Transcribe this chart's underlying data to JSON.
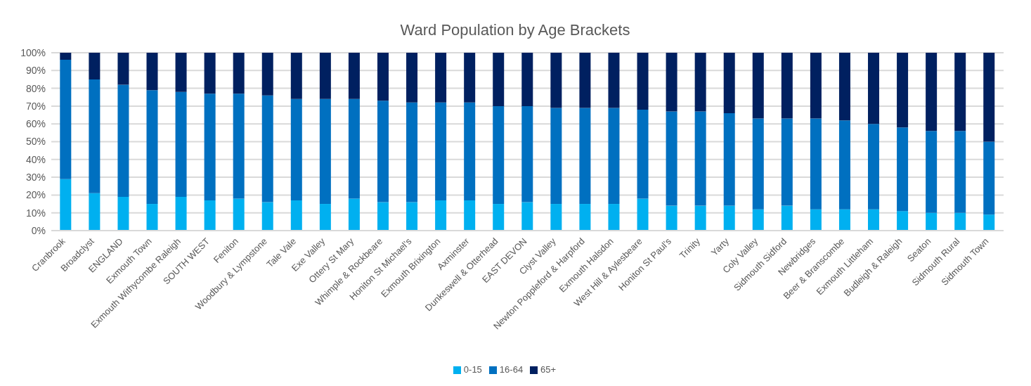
{
  "chart_data": {
    "type": "bar",
    "title": "Ward Population by Age Brackets",
    "stacked": true,
    "grid": "y",
    "legend": "bottom",
    "categories": [
      "Cranbrook",
      "Broadclyst",
      "ENGLAND",
      "Exmouth Town",
      "Exmouth Withycombe Raleigh",
      "SOUTH WEST",
      "Feniton",
      "Woodbury & Lympstone",
      "Tale Vale",
      "Exe Valley",
      "Ottery St Mary",
      "Whimple & Rockbeare",
      "Honiton St Michael's",
      "Exmouth Brixington",
      "Axminster",
      "Dunkeswell & Otterhead",
      "EAST DEVON",
      "Clyst Valley",
      "Newton Poppleford & Harpford",
      "Exmouth Halsdon",
      "West Hill & Aylesbeare",
      "Honiton St Paul's",
      "Trinity",
      "Yarty",
      "Coly Valley",
      "Sidmouth Sidford",
      "Newbridges",
      "Beer & Branscombe",
      "Exmouth Littleham",
      "Budleigh & Raleigh",
      "Seaton",
      "Sidmouth Rural",
      "Sidmouth Town"
    ],
    "series": [
      {
        "name": "0-15",
        "color": "#00b0f0",
        "values": [
          29,
          21,
          19,
          15,
          19,
          17,
          18,
          16,
          17,
          15,
          18,
          16,
          16,
          17,
          17,
          15,
          16,
          15,
          15,
          15,
          18,
          14,
          14,
          14,
          12,
          14,
          12,
          12,
          12,
          11,
          10,
          10,
          9
        ]
      },
      {
        "name": "16-64",
        "color": "#0070c0",
        "values": [
          67,
          64,
          63,
          64,
          59,
          60,
          59,
          60,
          57,
          59,
          56,
          57,
          56,
          55,
          55,
          55,
          54,
          54,
          54,
          54,
          50,
          53,
          53,
          52,
          51,
          49,
          51,
          50,
          48,
          47,
          46,
          46,
          41
        ]
      },
      {
        "name": "65+",
        "color": "#002060",
        "values": [
          4,
          15,
          18,
          21,
          22,
          23,
          23,
          24,
          26,
          26,
          26,
          27,
          28,
          28,
          28,
          30,
          30,
          31,
          31,
          31,
          32,
          33,
          33,
          34,
          37,
          37,
          37,
          38,
          40,
          42,
          44,
          44,
          50
        ]
      }
    ],
    "ylim": [
      0,
      100
    ],
    "yticks": [
      {
        "value": 0,
        "label": "0%"
      },
      {
        "value": 10,
        "label": "10%"
      },
      {
        "value": 20,
        "label": "20%"
      },
      {
        "value": 30,
        "label": "30%"
      },
      {
        "value": 40,
        "label": "40%"
      },
      {
        "value": 50,
        "label": "50%"
      },
      {
        "value": 60,
        "label": "60%"
      },
      {
        "value": 70,
        "label": "70%"
      },
      {
        "value": 80,
        "label": "80%"
      },
      {
        "value": 90,
        "label": "90%"
      },
      {
        "value": 100,
        "label": "100%"
      }
    ]
  }
}
